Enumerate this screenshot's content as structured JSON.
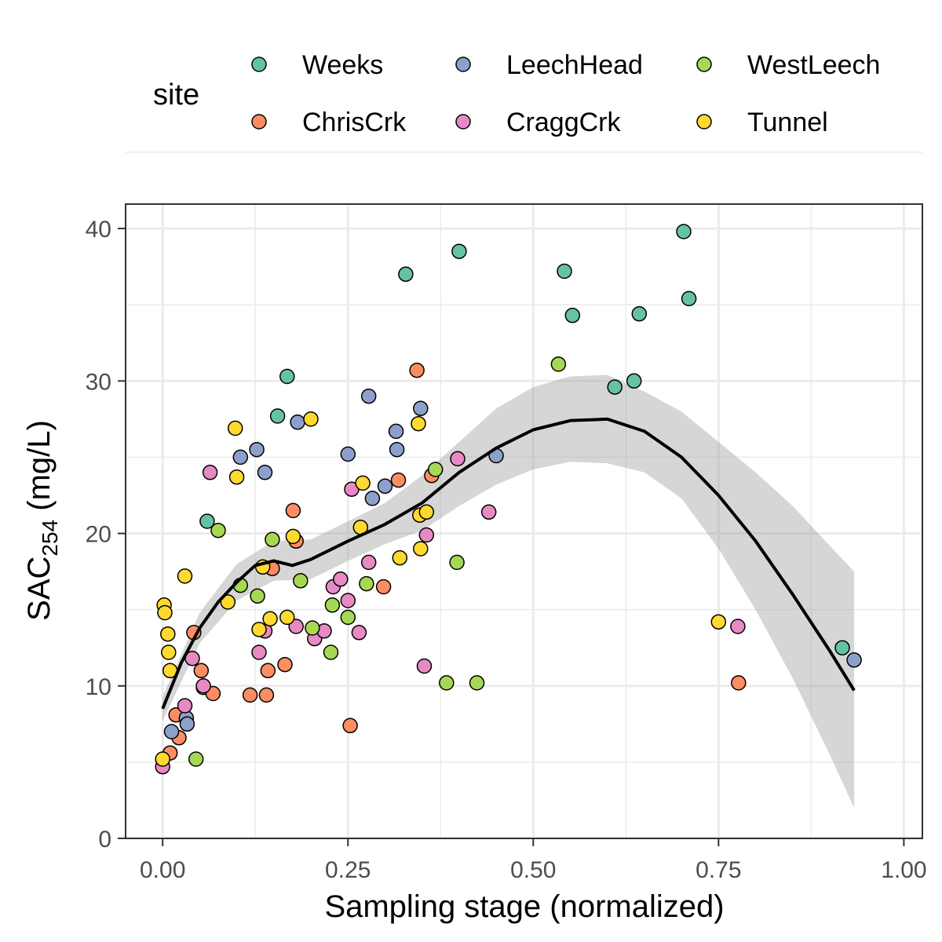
{
  "chart_data": {
    "type": "scatter",
    "xlabel": "Sampling stage (normalized)",
    "ylabel": {
      "main": "SAC",
      "sub": "254",
      "unit": " (mg/L)"
    },
    "xlim": [
      -0.05,
      1.025
    ],
    "ylim": [
      0,
      41.6
    ],
    "x_ticks": [
      0.0,
      0.25,
      0.5,
      0.75,
      1.0
    ],
    "x_tick_labels": [
      "0.00",
      "0.25",
      "0.50",
      "0.75",
      "1.00"
    ],
    "y_ticks": [
      0,
      10,
      20,
      30,
      40
    ],
    "y_tick_labels": [
      "0",
      "10",
      "20",
      "30",
      "40"
    ],
    "grid": true,
    "legend": {
      "title": "site",
      "position": "top"
    },
    "series": [
      {
        "name": "Weeks",
        "color": "#66c2a5",
        "points": [
          [
            0.06,
            20.8
          ],
          [
            0.155,
            27.7
          ],
          [
            0.168,
            30.3
          ],
          [
            0.328,
            37.0
          ],
          [
            0.4,
            38.5
          ],
          [
            0.542,
            37.2
          ],
          [
            0.553,
            34.3
          ],
          [
            0.61,
            29.6
          ],
          [
            0.636,
            30.0
          ],
          [
            0.643,
            34.4
          ],
          [
            0.703,
            39.8
          ],
          [
            0.71,
            35.4
          ],
          [
            0.917,
            12.5
          ]
        ]
      },
      {
        "name": "ChrisCrk",
        "color": "#fc8d62",
        "points": [
          [
            0.01,
            5.6
          ],
          [
            0.018,
            8.1
          ],
          [
            0.022,
            6.6
          ],
          [
            0.042,
            13.5
          ],
          [
            0.052,
            11.0
          ],
          [
            0.055,
            9.9
          ],
          [
            0.068,
            9.5
          ],
          [
            0.118,
            9.4
          ],
          [
            0.14,
            9.4
          ],
          [
            0.142,
            11.0
          ],
          [
            0.148,
            17.7
          ],
          [
            0.165,
            11.4
          ],
          [
            0.176,
            21.5
          ],
          [
            0.18,
            19.5
          ],
          [
            0.253,
            7.4
          ],
          [
            0.298,
            16.5
          ],
          [
            0.318,
            23.5
          ],
          [
            0.343,
            30.7
          ],
          [
            0.363,
            23.8
          ],
          [
            0.777,
            10.2
          ]
        ]
      },
      {
        "name": "LeechHead",
        "color": "#8da0cb",
        "points": [
          [
            0.012,
            7.0
          ],
          [
            0.032,
            7.9
          ],
          [
            0.033,
            7.5
          ],
          [
            0.105,
            25.0
          ],
          [
            0.127,
            25.5
          ],
          [
            0.138,
            24.0
          ],
          [
            0.182,
            27.3
          ],
          [
            0.25,
            25.2
          ],
          [
            0.278,
            29.0
          ],
          [
            0.283,
            22.3
          ],
          [
            0.3,
            23.1
          ],
          [
            0.315,
            26.7
          ],
          [
            0.316,
            25.5
          ],
          [
            0.348,
            28.2
          ],
          [
            0.45,
            25.1
          ],
          [
            0.933,
            11.7
          ]
        ]
      },
      {
        "name": "CraggCrk",
        "color": "#e78ac3",
        "points": [
          [
            0.0,
            4.7
          ],
          [
            0.03,
            8.7
          ],
          [
            0.04,
            11.8
          ],
          [
            0.055,
            10.0
          ],
          [
            0.064,
            24.0
          ],
          [
            0.13,
            12.2
          ],
          [
            0.138,
            13.6
          ],
          [
            0.18,
            13.9
          ],
          [
            0.205,
            13.1
          ],
          [
            0.218,
            13.6
          ],
          [
            0.23,
            16.5
          ],
          [
            0.24,
            17.0
          ],
          [
            0.25,
            15.6
          ],
          [
            0.255,
            22.9
          ],
          [
            0.265,
            13.5
          ],
          [
            0.278,
            18.1
          ],
          [
            0.353,
            11.3
          ],
          [
            0.356,
            19.9
          ],
          [
            0.398,
            24.9
          ],
          [
            0.44,
            21.4
          ],
          [
            0.776,
            13.9
          ]
        ]
      },
      {
        "name": "WestLeech",
        "color": "#a6d854",
        "points": [
          [
            0.045,
            5.2
          ],
          [
            0.075,
            20.2
          ],
          [
            0.105,
            16.6
          ],
          [
            0.128,
            15.9
          ],
          [
            0.148,
            19.6
          ],
          [
            0.186,
            16.9
          ],
          [
            0.202,
            13.8
          ],
          [
            0.227,
            12.2
          ],
          [
            0.229,
            15.3
          ],
          [
            0.25,
            14.5
          ],
          [
            0.275,
            16.7
          ],
          [
            0.368,
            24.2
          ],
          [
            0.383,
            10.2
          ],
          [
            0.397,
            18.1
          ],
          [
            0.424,
            10.2
          ],
          [
            0.534,
            31.1
          ]
        ]
      },
      {
        "name": "Tunnel",
        "color": "#ffd92f",
        "points": [
          [
            0.0,
            5.2
          ],
          [
            0.002,
            15.3
          ],
          [
            0.003,
            14.8
          ],
          [
            0.007,
            13.4
          ],
          [
            0.008,
            12.2
          ],
          [
            0.01,
            11.0
          ],
          [
            0.03,
            17.2
          ],
          [
            0.088,
            15.5
          ],
          [
            0.098,
            26.9
          ],
          [
            0.1,
            23.7
          ],
          [
            0.13,
            13.7
          ],
          [
            0.135,
            17.8
          ],
          [
            0.145,
            14.4
          ],
          [
            0.168,
            14.5
          ],
          [
            0.176,
            19.8
          ],
          [
            0.2,
            27.5
          ],
          [
            0.267,
            20.4
          ],
          [
            0.27,
            23.3
          ],
          [
            0.32,
            18.4
          ],
          [
            0.345,
            27.2
          ],
          [
            0.347,
            21.2
          ],
          [
            0.348,
            19.0
          ],
          [
            0.356,
            21.4
          ],
          [
            0.75,
            14.2
          ]
        ]
      }
    ],
    "smooth": {
      "line": [
        [
          0.0,
          8.5
        ],
        [
          0.025,
          11.5
        ],
        [
          0.05,
          13.8
        ],
        [
          0.075,
          15.5
        ],
        [
          0.1,
          16.8
        ],
        [
          0.125,
          17.9
        ],
        [
          0.15,
          18.2
        ],
        [
          0.175,
          17.9
        ],
        [
          0.2,
          18.3
        ],
        [
          0.25,
          19.5
        ],
        [
          0.3,
          20.6
        ],
        [
          0.35,
          22.0
        ],
        [
          0.4,
          24.0
        ],
        [
          0.45,
          25.6
        ],
        [
          0.5,
          26.8
        ],
        [
          0.55,
          27.4
        ],
        [
          0.6,
          27.5
        ],
        [
          0.65,
          26.7
        ],
        [
          0.7,
          25.0
        ],
        [
          0.75,
          22.5
        ],
        [
          0.8,
          19.5
        ],
        [
          0.85,
          16.0
        ],
        [
          0.9,
          12.3
        ],
        [
          0.933,
          9.7
        ]
      ],
      "upper": [
        [
          0.0,
          9.3
        ],
        [
          0.05,
          14.8
        ],
        [
          0.1,
          18.0
        ],
        [
          0.15,
          19.5
        ],
        [
          0.2,
          19.6
        ],
        [
          0.25,
          20.8
        ],
        [
          0.3,
          22.0
        ],
        [
          0.35,
          23.8
        ],
        [
          0.4,
          26.0
        ],
        [
          0.45,
          28.2
        ],
        [
          0.5,
          29.6
        ],
        [
          0.55,
          30.3
        ],
        [
          0.6,
          30.4
        ],
        [
          0.65,
          29.3
        ],
        [
          0.7,
          28.0
        ],
        [
          0.75,
          26.0
        ],
        [
          0.8,
          24.0
        ],
        [
          0.85,
          21.8
        ],
        [
          0.9,
          19.2
        ],
        [
          0.933,
          17.5
        ]
      ],
      "lower": [
        [
          0.0,
          7.7
        ],
        [
          0.05,
          12.8
        ],
        [
          0.1,
          15.6
        ],
        [
          0.15,
          16.9
        ],
        [
          0.2,
          17.0
        ],
        [
          0.25,
          18.2
        ],
        [
          0.3,
          19.3
        ],
        [
          0.35,
          20.2
        ],
        [
          0.4,
          21.8
        ],
        [
          0.45,
          23.2
        ],
        [
          0.5,
          24.2
        ],
        [
          0.55,
          24.7
        ],
        [
          0.6,
          24.6
        ],
        [
          0.65,
          24.0
        ],
        [
          0.7,
          22.3
        ],
        [
          0.75,
          19.0
        ],
        [
          0.8,
          15.0
        ],
        [
          0.85,
          10.5
        ],
        [
          0.9,
          5.5
        ],
        [
          0.933,
          2.0
        ]
      ]
    }
  }
}
